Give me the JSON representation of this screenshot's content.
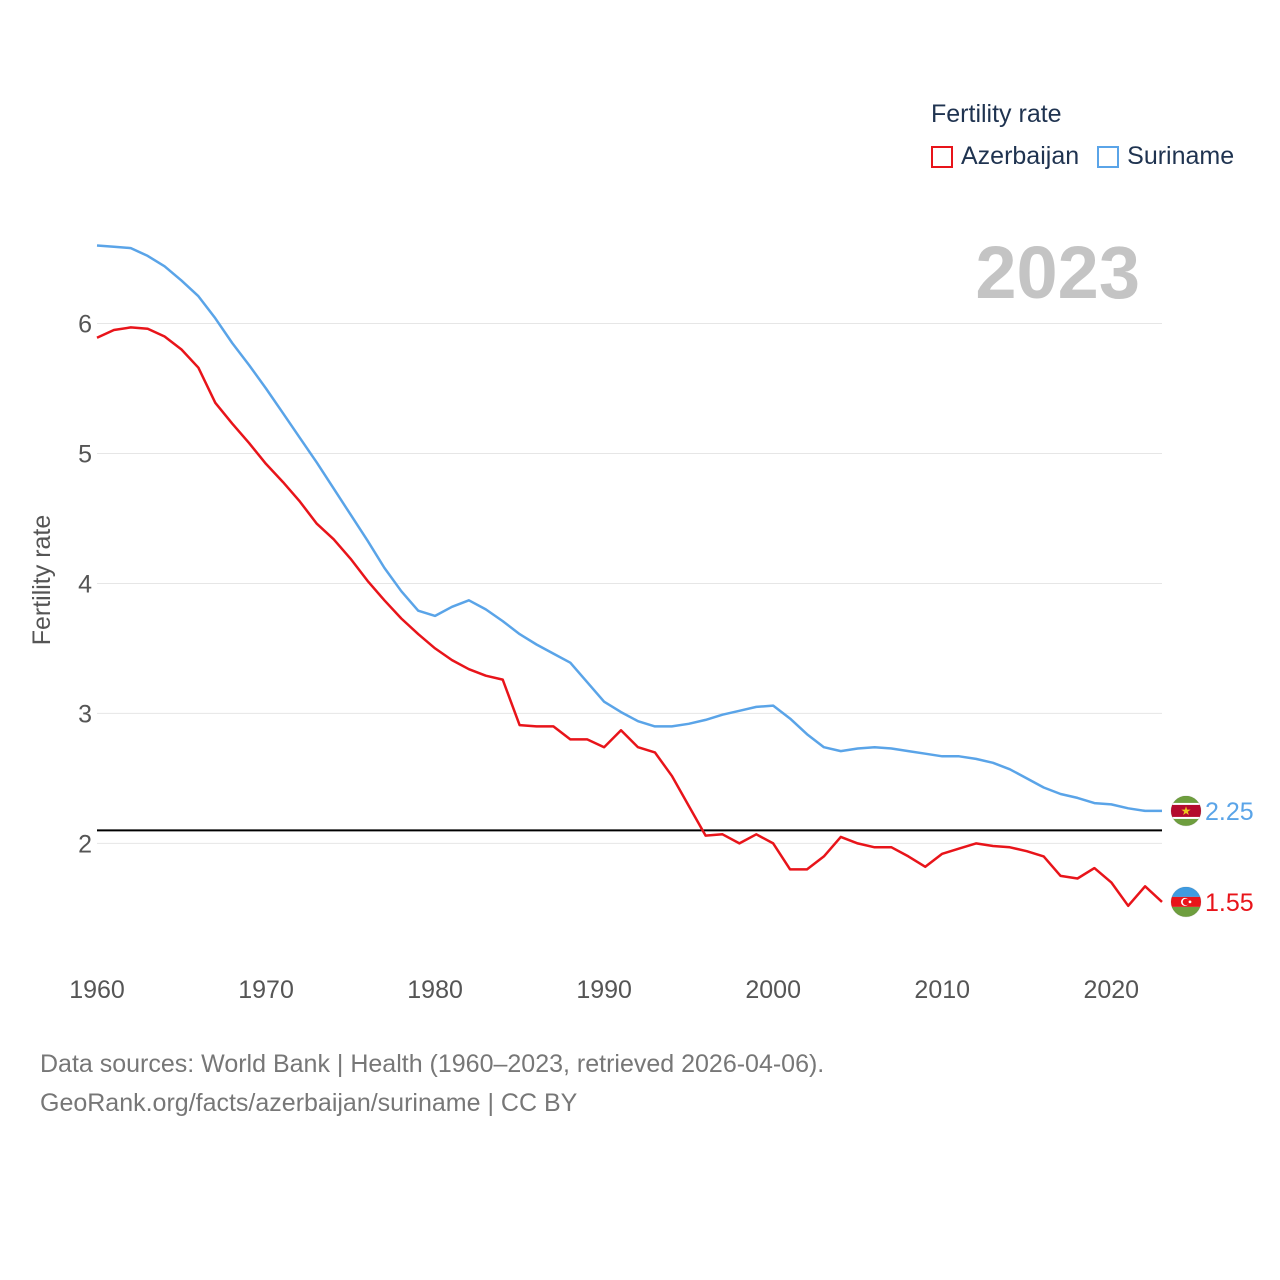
{
  "legend": {
    "title": "Fertility rate"
  },
  "colors": {
    "azerbaijan": "#e8141a",
    "suriname": "#5aa4e8",
    "axis_text": "#555555",
    "grid": "#e6e6e6",
    "year_label": "#c4c4c4",
    "reference": "#000000"
  },
  "chart_data": {
    "type": "line",
    "title": "Fertility rate",
    "ylabel": "Fertility rate",
    "xlabel": "",
    "xlim": [
      1960,
      2023
    ],
    "ylim": [
      1.18,
      6.95
    ],
    "x_ticks": [
      1960,
      1970,
      1980,
      1990,
      2000,
      2010,
      2020
    ],
    "y_ticks": [
      2,
      3,
      4,
      5,
      6
    ],
    "year_label": "2023",
    "reference_line": 2.1,
    "x": [
      1960,
      1961,
      1962,
      1963,
      1964,
      1965,
      1966,
      1967,
      1968,
      1969,
      1970,
      1971,
      1972,
      1973,
      1974,
      1975,
      1976,
      1977,
      1978,
      1979,
      1980,
      1981,
      1982,
      1983,
      1984,
      1985,
      1986,
      1987,
      1988,
      1989,
      1990,
      1991,
      1992,
      1993,
      1994,
      1995,
      1996,
      1997,
      1998,
      1999,
      2000,
      2001,
      2002,
      2003,
      2004,
      2005,
      2006,
      2007,
      2008,
      2009,
      2010,
      2011,
      2012,
      2013,
      2014,
      2015,
      2016,
      2017,
      2018,
      2019,
      2020,
      2021,
      2022,
      2023
    ],
    "series": [
      {
        "name": "Azerbaijan",
        "color": "#e8141a",
        "end_label": "1.55",
        "values": [
          5.89,
          5.95,
          5.97,
          5.96,
          5.9,
          5.8,
          5.66,
          5.39,
          5.23,
          5.08,
          4.92,
          4.78,
          4.63,
          4.46,
          4.34,
          4.19,
          4.02,
          3.87,
          3.73,
          3.61,
          3.5,
          3.41,
          3.34,
          3.29,
          3.26,
          2.91,
          2.9,
          2.9,
          2.8,
          2.8,
          2.74,
          2.87,
          2.74,
          2.7,
          2.52,
          2.29,
          2.06,
          2.07,
          2.0,
          2.07,
          2.0,
          1.8,
          1.8,
          1.9,
          2.05,
          2.0,
          1.97,
          1.97,
          1.9,
          1.82,
          1.92,
          1.96,
          2.0,
          1.98,
          1.97,
          1.94,
          1.9,
          1.75,
          1.73,
          1.81,
          1.7,
          1.52,
          1.67,
          1.55
        ]
      },
      {
        "name": "Suriname",
        "color": "#5aa4e8",
        "end_label": "2.25",
        "values": [
          6.6,
          6.59,
          6.58,
          6.52,
          6.44,
          6.33,
          6.21,
          6.04,
          5.85,
          5.68,
          5.5,
          5.31,
          5.12,
          4.93,
          4.73,
          4.53,
          4.33,
          4.12,
          3.94,
          3.79,
          3.75,
          3.82,
          3.87,
          3.8,
          3.71,
          3.61,
          3.53,
          3.46,
          3.39,
          3.24,
          3.09,
          3.01,
          2.94,
          2.9,
          2.9,
          2.92,
          2.95,
          2.99,
          3.02,
          3.05,
          3.06,
          2.96,
          2.84,
          2.74,
          2.71,
          2.73,
          2.74,
          2.73,
          2.71,
          2.69,
          2.67,
          2.67,
          2.65,
          2.62,
          2.57,
          2.5,
          2.43,
          2.38,
          2.35,
          2.31,
          2.3,
          2.27,
          2.25,
          2.25
        ]
      }
    ]
  },
  "footer": {
    "line1": "Data sources: World Bank | Health (1960–2023, retrieved 2026-04-06).",
    "line2": "GeoRank.org/facts/azerbaijan/suriname | CC BY"
  }
}
